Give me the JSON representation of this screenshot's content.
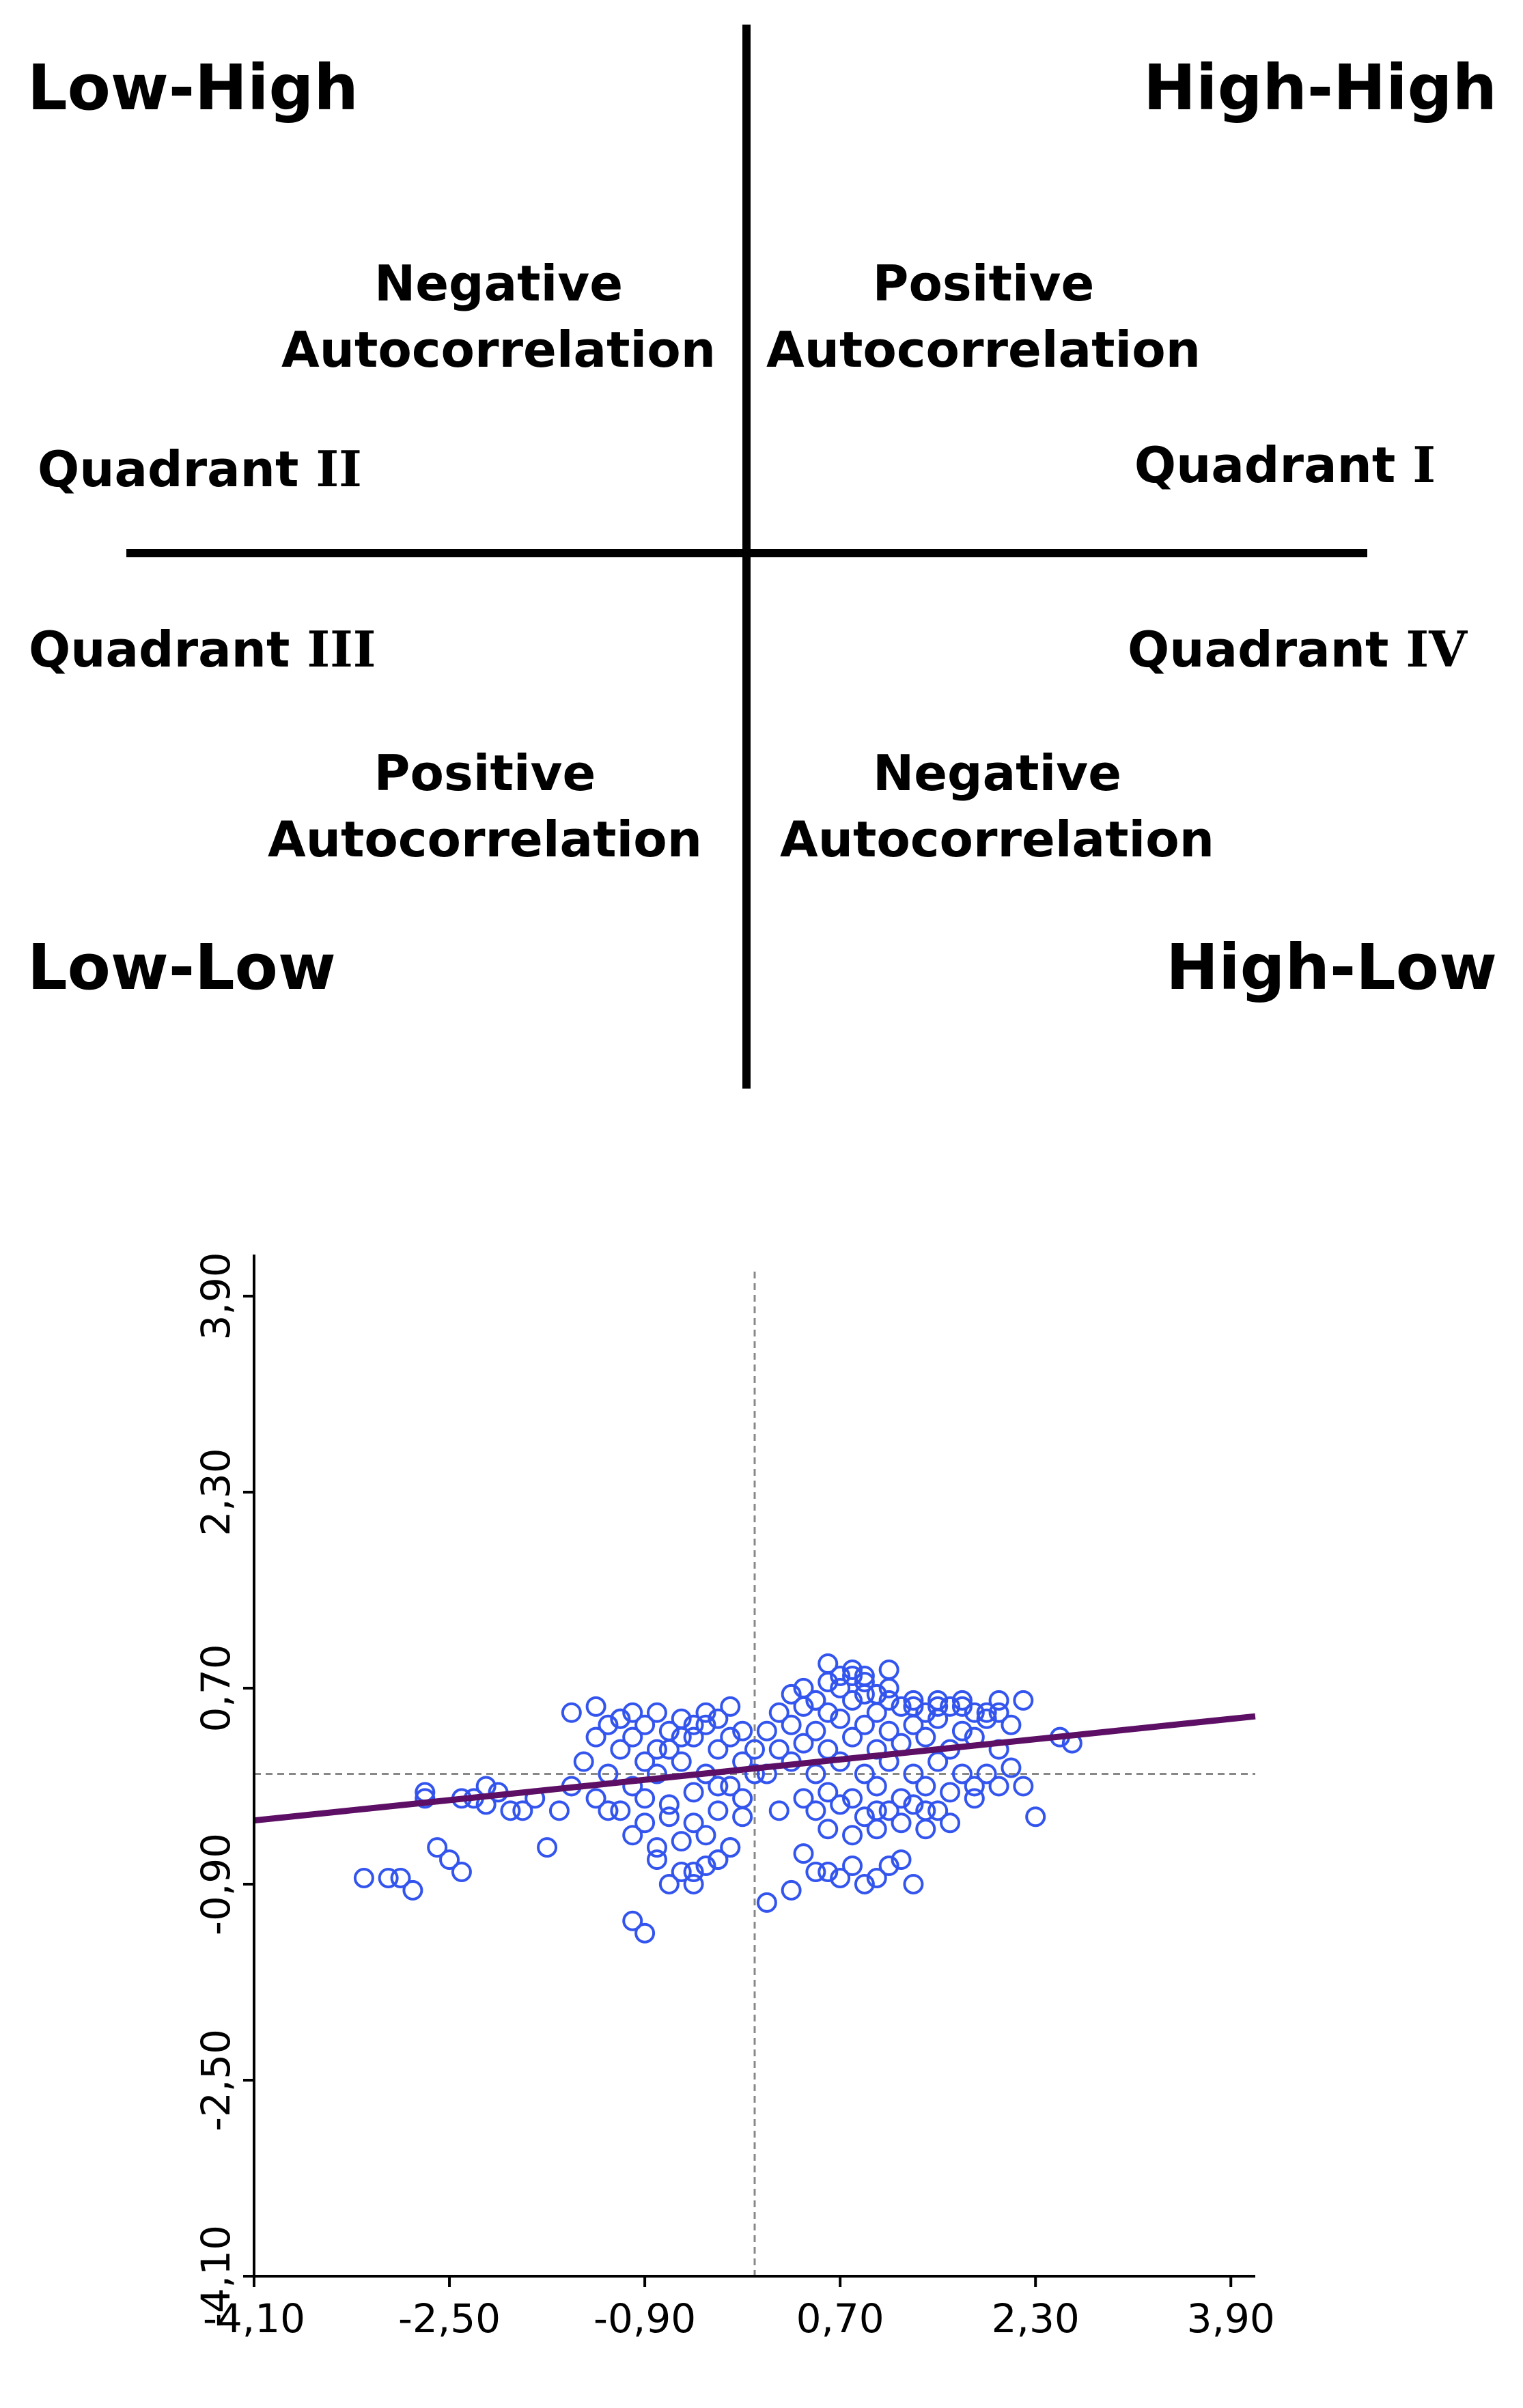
{
  "diagram": {
    "corners": {
      "top_left": "Low-High",
      "top_right": "High-High",
      "bottom_left": "Low-Low",
      "bottom_right": "High-Low"
    },
    "quadrants": {
      "q1": {
        "prefix": "Quadrant ",
        "numeral": "I"
      },
      "q2": {
        "prefix": "Quadrant ",
        "numeral": "II"
      },
      "q3": {
        "prefix": "Quadrant ",
        "numeral": "III"
      },
      "q4": {
        "prefix": "Quadrant ",
        "numeral": "IV"
      }
    },
    "autocorrelation": {
      "upper_left": {
        "line1": "Negative",
        "line2": "Autocorrelation"
      },
      "upper_right": {
        "line1": "Positive",
        "line2": "Autocorrelation"
      },
      "lower_left": {
        "line1": "Positive",
        "line2": "Autocorrelation"
      },
      "lower_right": {
        "line1": "Negative",
        "line2": "Autocorrelation"
      }
    }
  },
  "chart_data": {
    "type": "scatter",
    "title": "",
    "xlabel": "",
    "ylabel": "",
    "xlim": [
      -4.1,
      4.1
    ],
    "ylim": [
      -4.1,
      4.1
    ],
    "xticks": [
      -4.1,
      -2.5,
      -0.9,
      0.7,
      2.3,
      3.9
    ],
    "xtick_labels": [
      "-4,10",
      "-2,50",
      "-0,90",
      "0,70",
      "2,30",
      "3,90"
    ],
    "yticks": [
      -4.1,
      -2.5,
      -0.9,
      0.7,
      2.3,
      3.9
    ],
    "ytick_labels": [
      "-4,10",
      "-2,50",
      "-0,90",
      "0,70",
      "2,30",
      "3,90"
    ],
    "reference_lines": {
      "x": 0,
      "y": 0
    },
    "regression_line": {
      "x": [
        -4.1,
        4.1
      ],
      "y": [
        -0.38,
        0.47
      ]
    },
    "marker_color": "#3355ee",
    "line_color": "#5c0f64",
    "axis_color": "#000000",
    "ref_line_color": "#888888",
    "points": {
      "x": [
        -3.2,
        -3.0,
        -2.9,
        -2.8,
        -2.7,
        -2.6,
        -2.5,
        -2.4,
        -2.3,
        -2.2,
        -2.0,
        -1.9,
        -1.7,
        -2.7,
        -2.4,
        -2.2,
        -2.1,
        -1.8,
        -1.6,
        -1.5,
        -1.3,
        -1.1,
        -0.9,
        -0.7,
        -0.5,
        -0.3,
        -0.1,
        -1.4,
        -1.2,
        -1.0,
        -0.8,
        -0.6,
        -0.4,
        -0.2,
        0.0,
        -1.3,
        -1.1,
        -0.9,
        -0.7,
        -0.5,
        -0.3,
        -0.1,
        -1.2,
        -1.0,
        -0.8,
        -0.6,
        -0.4,
        -0.2,
        0.0,
        -1.1,
        -0.9,
        -0.7,
        -0.5,
        -0.3,
        -0.1,
        -1.0,
        -0.8,
        -0.6,
        -0.4,
        -0.2,
        -0.9,
        -0.7,
        -0.5,
        -0.3,
        -0.1,
        -0.8,
        -0.6,
        -0.4,
        -0.2,
        -1.2,
        -1.0,
        -0.8,
        -0.6,
        -0.4,
        -0.2,
        -0.7,
        -0.5,
        -0.3,
        -1.5,
        -1.3,
        -1.1,
        -1.0,
        -0.9,
        0.1,
        0.3,
        0.5,
        0.7,
        0.9,
        1.1,
        1.3,
        1.5,
        1.7,
        1.9,
        2.1,
        0.2,
        0.4,
        0.6,
        0.8,
        1.0,
        1.2,
        1.4,
        1.6,
        1.8,
        2.0,
        0.1,
        0.3,
        0.5,
        0.7,
        0.9,
        1.1,
        1.3,
        1.5,
        1.7,
        1.9,
        2.1,
        0.2,
        0.4,
        0.6,
        0.8,
        1.0,
        1.2,
        1.4,
        1.6,
        1.8,
        2.0,
        0.3,
        0.5,
        0.7,
        0.9,
        1.1,
        1.3,
        1.5,
        1.7,
        1.9,
        0.4,
        0.6,
        0.8,
        1.0,
        1.2,
        1.4,
        1.6,
        1.8,
        0.5,
        0.7,
        0.9,
        1.1,
        1.3,
        1.5,
        0.6,
        0.8,
        1.0,
        1.2,
        1.4,
        0.7,
        0.9,
        1.1,
        0.4,
        0.6,
        0.8,
        1.0,
        0.6,
        0.9,
        0.5,
        0.8,
        1.1,
        1.3,
        1.5,
        1.7,
        2.0,
        2.2,
        2.5,
        2.6,
        2.2,
        0.2,
        0.4,
        0.6,
        0.8,
        1.0,
        1.2,
        0.5,
        0.7,
        0.9,
        1.1,
        1.3,
        1.6,
        1.8,
        2.0,
        2.3,
        -0.5,
        -0.3,
        0.1,
        0.3,
        1.0,
        1.4
      ],
      "y": [
        -0.85,
        -0.85,
        -0.85,
        -0.95,
        -0.15,
        -0.6,
        -0.7,
        -0.8,
        -0.2,
        -0.25,
        -0.3,
        -0.3,
        -0.6,
        -0.2,
        -0.2,
        -0.1,
        -0.15,
        -0.2,
        -0.3,
        -0.1,
        -0.2,
        -0.3,
        -0.2,
        -0.25,
        -0.15,
        -0.1,
        -0.2,
        0.1,
        0.0,
        -0.1,
        0.0,
        0.1,
        0.0,
        -0.1,
        0.0,
        0.3,
        0.2,
        0.1,
        0.2,
        0.3,
        0.2,
        0.1,
        0.4,
        0.3,
        0.2,
        0.3,
        0.4,
        0.3,
        0.2,
        0.45,
        0.4,
        0.35,
        0.4,
        0.45,
        0.35,
        0.5,
        0.5,
        0.45,
        0.5,
        0.55,
        -0.4,
        -0.35,
        -0.4,
        -0.3,
        -0.35,
        -0.6,
        -0.55,
        -0.5,
        -0.6,
        -0.3,
        -0.5,
        -0.7,
        -0.8,
        -0.75,
        -0.6,
        -0.9,
        -0.8,
        -0.7,
        0.5,
        0.55,
        0.45,
        -1.2,
        -1.3,
        0.0,
        0.1,
        0.0,
        0.1,
        0.0,
        0.1,
        0.0,
        0.1,
        0.0,
        0.0,
        0.05,
        0.2,
        0.25,
        0.2,
        0.3,
        0.2,
        0.25,
        0.3,
        0.2,
        0.3,
        0.2,
        0.35,
        0.4,
        0.35,
        0.45,
        0.4,
        0.35,
        0.4,
        0.45,
        0.35,
        0.45,
        0.4,
        0.5,
        0.55,
        0.5,
        0.6,
        0.5,
        0.55,
        0.5,
        0.55,
        0.5,
        0.6,
        0.65,
        0.6,
        0.7,
        0.65,
        0.6,
        0.55,
        0.6,
        0.55,
        0.5,
        -0.2,
        -0.15,
        -0.2,
        -0.1,
        -0.2,
        -0.1,
        -0.15,
        -0.1,
        -0.3,
        -0.25,
        -0.35,
        -0.3,
        -0.25,
        -0.3,
        -0.45,
        -0.5,
        -0.45,
        -0.4,
        -0.45,
        0.8,
        0.75,
        0.85,
        0.7,
        0.75,
        0.8,
        0.65,
        0.9,
        0.8,
        0.6,
        0.85,
        0.7,
        0.6,
        0.55,
        0.6,
        0.5,
        0.6,
        0.3,
        0.25,
        -0.1,
        -0.3,
        -0.65,
        -0.8,
        -0.75,
        -0.85,
        -0.7,
        -0.8,
        -0.85,
        -0.9,
        -0.75,
        -0.9,
        -0.4,
        -0.2,
        -0.1,
        -0.35,
        -0.9,
        -0.7,
        -1.05,
        -0.95,
        -0.3,
        -0.3
      ]
    }
  }
}
